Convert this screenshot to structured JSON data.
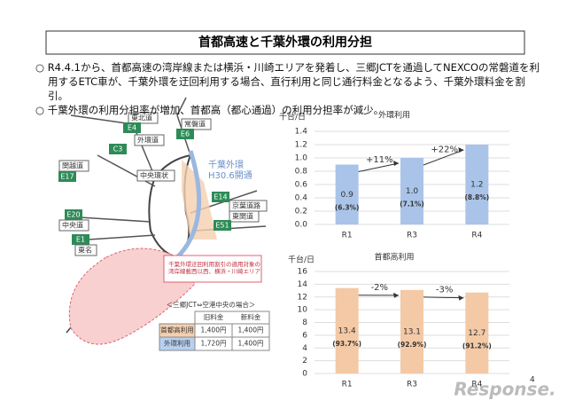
{
  "title": "首都高速と千葉外環の利用分担",
  "bullets": [
    "○ R4.4.1から、首都高速の湾岸線または横浜・川崎エリアを発着し、三郷JCTを通過してNEXCOの常磐道を利用するETC車が、千葉外環を迂回利用する場合、直行利用と同じ通行料金となるよう、千葉外環料金を割引。",
    "○ 千葉外環の利用分担率が増加、首都高（都心通過）の利用分担率が減少。"
  ],
  "map": {
    "labels": [
      "東北道",
      "E4",
      "常磐道",
      "E6",
      "外環道",
      "C3",
      "関越道",
      "E17",
      "中央環状",
      "E20",
      "中央道",
      "E1",
      "東名",
      "E14",
      "京葉道路",
      "東関道",
      "E51"
    ],
    "new_road": "千葉外環\nH30.6開通",
    "callout": "千葉外環迂回利用割引の適用対象の\n湾岸線載西以西、横浜・川崎エリア"
  },
  "table": {
    "caption": "＜三郷JCT⇔空港中央の場合＞",
    "header": [
      "旧料金",
      "新料金"
    ],
    "rows": [
      [
        "首都高利用",
        "1,400円",
        "1,400円"
      ],
      [
        "外環利用",
        "1,720円",
        "1,400円"
      ]
    ]
  },
  "chart_data": [
    {
      "type": "bar",
      "title": "外環利用",
      "y_label": "千台/日",
      "categories": [
        "R1",
        "R3",
        "R4"
      ],
      "values": [
        0.9,
        1.0,
        1.2
      ],
      "value_labels": [
        "0.9",
        "1.0",
        "1.2"
      ],
      "shares": [
        6.3,
        7.1,
        8.8
      ],
      "share_labels": [
        "(6.3%)",
        "(7.1%)",
        "(8.8%)"
      ],
      "annotations": [
        "+11%",
        "+22%"
      ],
      "color": "#a9c4e8",
      "ylim": [
        0,
        1.4
      ],
      "yticks": [
        {
          "value": 0,
          "label": "0.0"
        },
        {
          "value": 0.2,
          "label": "0.2"
        },
        {
          "value": 0.4,
          "label": "0.4"
        },
        {
          "value": 0.6,
          "label": "0.6"
        },
        {
          "value": 0.8,
          "label": "0.8"
        },
        {
          "value": 1.0,
          "label": "1.0"
        },
        {
          "value": 1.2,
          "label": "1.2"
        },
        {
          "value": 1.4,
          "label": "1.4"
        }
      ],
      "grid": true
    },
    {
      "type": "bar",
      "title": "首都高利用",
      "y_label": "千台/日",
      "categories": [
        "R1",
        "R3",
        "R4"
      ],
      "values": [
        13.4,
        13.1,
        12.7
      ],
      "value_labels": [
        "13.4",
        "13.1",
        "12.7"
      ],
      "shares": [
        93.7,
        92.9,
        91.2
      ],
      "share_labels": [
        "(93.7%)",
        "(92.9%)",
        "(91.2%)"
      ],
      "annotations": [
        "-2%",
        "-3%"
      ],
      "color": "#f4c9a6",
      "ylim": [
        0,
        16
      ],
      "yticks": [
        0,
        2,
        4,
        6,
        8,
        10,
        12,
        14,
        16
      ],
      "grid": true
    }
  ],
  "page_number": "4",
  "watermark": "Response."
}
